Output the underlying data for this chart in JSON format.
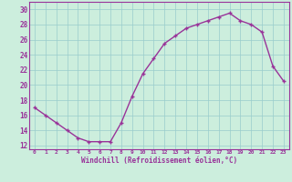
{
  "x": [
    0,
    1,
    2,
    3,
    4,
    5,
    6,
    7,
    8,
    9,
    10,
    11,
    12,
    13,
    14,
    15,
    16,
    17,
    18,
    19,
    20,
    21,
    22,
    23
  ],
  "y": [
    17.0,
    16.0,
    15.0,
    14.0,
    13.0,
    12.5,
    12.5,
    12.5,
    15.0,
    18.5,
    21.5,
    23.5,
    25.5,
    26.5,
    27.5,
    28.0,
    28.5,
    29.0,
    29.5,
    28.5,
    28.0,
    27.0,
    22.5,
    20.5
  ],
  "line_color": "#993399",
  "marker": "+",
  "bg_color": "#cceedd",
  "grid_color": "#99cccc",
  "xlabel": "Windchill (Refroidissement éolien,°C)",
  "xlabel_color": "#993399",
  "tick_color": "#993399",
  "spine_color": "#993399",
  "xlim": [
    -0.5,
    23.5
  ],
  "ylim": [
    11.5,
    31
  ],
  "yticks": [
    12,
    14,
    16,
    18,
    20,
    22,
    24,
    26,
    28,
    30
  ],
  "xticks": [
    0,
    1,
    2,
    3,
    4,
    5,
    6,
    7,
    8,
    9,
    10,
    11,
    12,
    13,
    14,
    15,
    16,
    17,
    18,
    19,
    20,
    21,
    22,
    23
  ]
}
